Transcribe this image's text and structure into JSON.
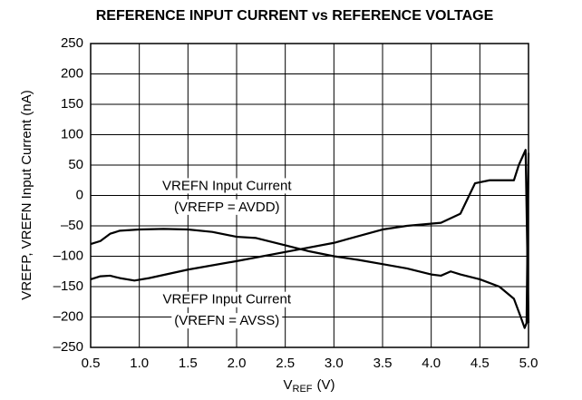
{
  "chart_data": {
    "type": "line",
    "title": "REFERENCE INPUT CURRENT vs REFERENCE VOLTAGE",
    "x_label": "V",
    "x_label_sub": "REF",
    "x_label_unit": "(V)",
    "y_label": "VREFP, VREFN Input Current (nA)",
    "xlim": [
      0.5,
      5.0
    ],
    "xticks": [
      0.5,
      {
        "value": 1,
        "label": "1.0"
      },
      1.5,
      {
        "value": 2,
        "label": "2.0"
      },
      2.5,
      {
        "value": 3,
        "label": "3.0"
      },
      3.5,
      {
        "value": 4,
        "label": "4.0"
      },
      4.5,
      {
        "value": 5,
        "label": "5.0"
      }
    ],
    "ylim": [
      -250,
      250
    ],
    "yticks": [
      250,
      200,
      150,
      100,
      50,
      0,
      {
        "value": -50,
        "label": "–50"
      },
      {
        "value": -100,
        "label": "–100"
      },
      {
        "value": -150,
        "label": "–150"
      },
      {
        "value": -200,
        "label": "–200"
      },
      {
        "value": -250,
        "label": "–250"
      }
    ],
    "grid": true,
    "annotations": [
      {
        "text": "VREFN Input Current",
        "x": 1.9,
        "y": 15
      },
      {
        "text": "(VREFP = AVDD)",
        "x": 1.9,
        "y": -20
      },
      {
        "text": "VREFP Input Current",
        "x": 1.9,
        "y": -172
      },
      {
        "text": "(VREFN = AVSS)",
        "x": 1.9,
        "y": -207
      }
    ],
    "series": [
      {
        "name": "VREFN Input Current",
        "color": "#000000",
        "x": [
          0.5,
          0.6,
          0.7,
          0.8,
          1.0,
          1.25,
          1.5,
          1.75,
          2.0,
          2.2,
          2.5,
          2.75,
          3.0,
          3.25,
          3.5,
          3.75,
          4.0,
          4.1,
          4.2,
          4.3,
          4.5,
          4.7,
          4.85,
          4.92,
          4.96,
          4.98,
          5.0
        ],
        "values": [
          -80,
          -75,
          -63,
          -58,
          -56,
          -55,
          -56,
          -60,
          -68,
          -70,
          -82,
          -92,
          -100,
          -106,
          -113,
          -120,
          -130,
          -132,
          -125,
          -130,
          -138,
          -150,
          -170,
          -200,
          -218,
          -210,
          70
        ]
      },
      {
        "name": "VREFP Input Current",
        "color": "#000000",
        "x": [
          0.5,
          0.6,
          0.7,
          0.8,
          0.95,
          1.1,
          1.5,
          2.0,
          2.6,
          3.0,
          3.5,
          3.75,
          4.1,
          4.3,
          4.45,
          4.6,
          4.85,
          4.9,
          4.97,
          5.0
        ],
        "values": [
          -138,
          -133,
          -132,
          -136,
          -140,
          -136,
          -122,
          -108,
          -90,
          -78,
          -56,
          -50,
          -45,
          -30,
          20,
          25,
          25,
          50,
          75,
          -210
        ]
      }
    ]
  }
}
